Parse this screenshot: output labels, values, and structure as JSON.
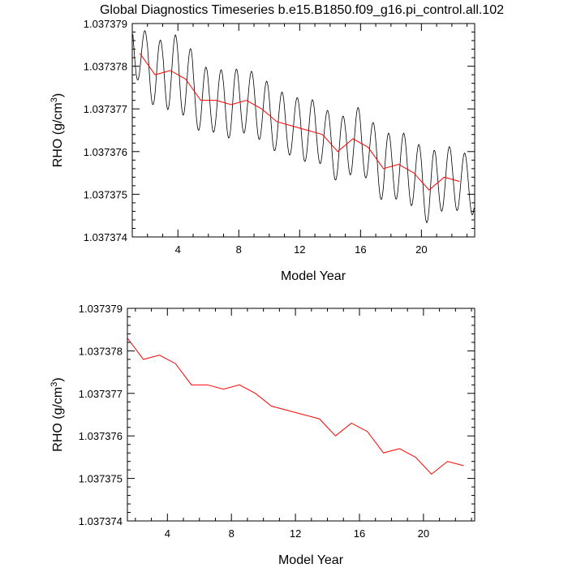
{
  "title": "Global Diagnostics Timeseries b.e15.B1850.f09_g16.pi_control.all.102",
  "colors": {
    "monthly": "#000000",
    "annual": "#ff0000",
    "frame": "#000000"
  },
  "chart_data": [
    {
      "type": "line",
      "xlabel": "Model Year",
      "ylabel_main": "RHO (g/cm",
      "ylabel_sup": "3",
      "ylabel_tail": ")",
      "xlim": [
        1,
        23.5
      ],
      "ylim": [
        1.037374,
        1.037379
      ],
      "xticks": [
        4,
        8,
        12,
        16,
        20
      ],
      "xtick_labels": [
        "4",
        "8",
        "12",
        "16",
        "20"
      ],
      "yticks": [
        1.037374,
        1.037375,
        1.037376,
        1.037377,
        1.037378,
        1.037379
      ],
      "ytick_labels": [
        "1.037374",
        "1.037375",
        "1.037376",
        "1.037377",
        "1.037378",
        "1.037379"
      ],
      "series": [
        {
          "style": "monthly",
          "amplitude": [
            7e-07,
            7.8e-07,
            9e-07,
            8.8e-07,
            7.8e-07,
            7.5e-07,
            8e-07,
            7.5e-07,
            7.5e-07,
            7.3e-07,
            7e-07,
            7.5e-07,
            7e-07,
            7.3e-07,
            8e-07,
            7.5e-07,
            8e-07,
            8e-07,
            8e-07,
            8.3e-07,
            7.5e-07,
            7e-07
          ],
          "phase_shift": 0.05
        },
        {
          "style": "annual",
          "x": [
            1.5,
            2.5,
            3.5,
            4.5,
            5.5,
            6.5,
            7.5,
            8.5,
            9.5,
            10.5,
            11.5,
            12.5,
            13.5,
            14.5,
            15.5,
            16.5,
            17.5,
            18.5,
            19.5,
            20.5,
            21.5,
            22.5
          ],
          "y": [
            1.0373783,
            1.0373778,
            1.0373779,
            1.0373777,
            1.0373772,
            1.0373772,
            1.0373771,
            1.0373772,
            1.037377,
            1.0373767,
            1.0373766,
            1.0373765,
            1.0373764,
            1.037376,
            1.0373763,
            1.0373761,
            1.0373756,
            1.0373757,
            1.0373755,
            1.0373751,
            1.0373754,
            1.0373753
          ]
        }
      ]
    },
    {
      "type": "line",
      "xlabel": "Model Year",
      "ylabel_main": "RHO (g/cm",
      "ylabel_sup": "3",
      "ylabel_tail": ")",
      "xlim": [
        1.5,
        23.2
      ],
      "ylim": [
        1.037374,
        1.037379
      ],
      "xticks": [
        4,
        8,
        12,
        16,
        20
      ],
      "xtick_labels": [
        "4",
        "8",
        "12",
        "16",
        "20"
      ],
      "yticks": [
        1.037374,
        1.037375,
        1.037376,
        1.037377,
        1.037378,
        1.037379
      ],
      "ytick_labels": [
        "1.037374",
        "1.037375",
        "1.037376",
        "1.037377",
        "1.037378",
        "1.037379"
      ],
      "series": [
        {
          "style": "annual",
          "x": [
            1.5,
            2.5,
            3.5,
            4.5,
            5.5,
            6.5,
            7.5,
            8.5,
            9.5,
            10.5,
            11.5,
            12.5,
            13.5,
            14.5,
            15.5,
            16.5,
            17.5,
            18.5,
            19.5,
            20.5,
            21.5,
            22.5
          ],
          "y": [
            1.0373783,
            1.0373778,
            1.0373779,
            1.0373777,
            1.0373772,
            1.0373772,
            1.0373771,
            1.0373772,
            1.037377,
            1.0373767,
            1.0373766,
            1.0373765,
            1.0373764,
            1.037376,
            1.0373763,
            1.0373761,
            1.0373756,
            1.0373757,
            1.0373755,
            1.0373751,
            1.0373754,
            1.0373753
          ]
        }
      ]
    }
  ]
}
